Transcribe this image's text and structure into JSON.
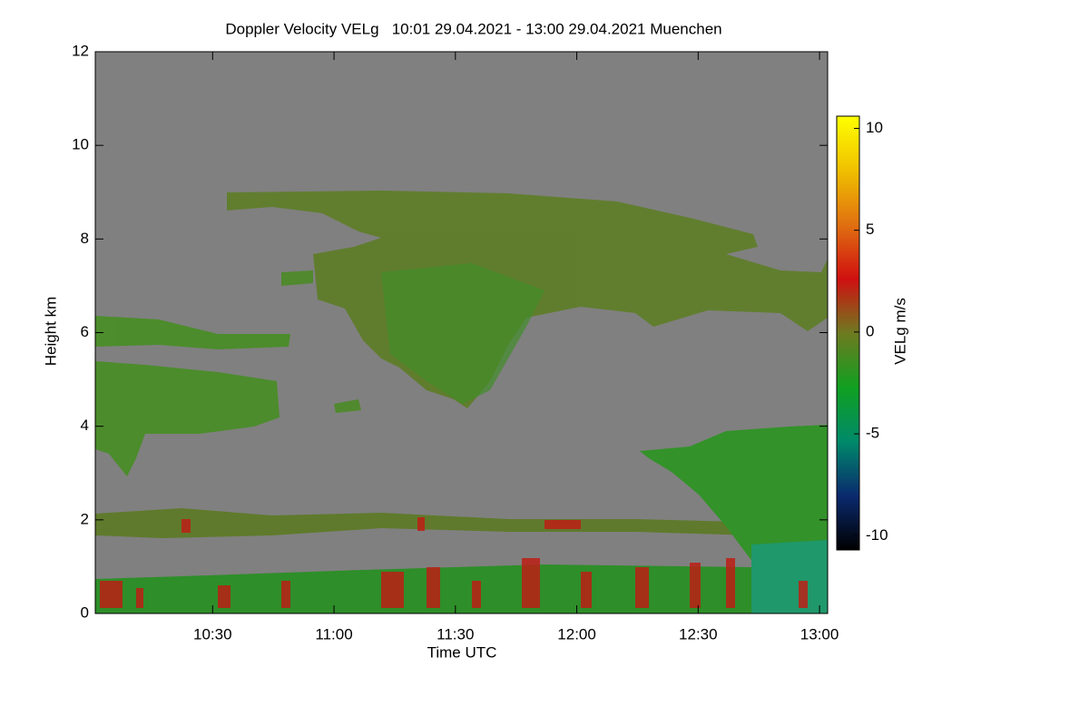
{
  "chart_data": {
    "type": "heatmap",
    "title": "Doppler Velocity VELg   10:01 29.04.2021 - 13:00 29.04.2021 Muenchen",
    "x_label": "Time UTC",
    "y_label": "Height km",
    "xlim": [
      601,
      782
    ],
    "xticks": [
      {
        "value": 630,
        "label": "10:30"
      },
      {
        "value": 660,
        "label": "11:00"
      },
      {
        "value": 690,
        "label": "11:30"
      },
      {
        "value": 720,
        "label": "12:00"
      },
      {
        "value": 750,
        "label": "12:30"
      },
      {
        "value": 780,
        "label": "13:00"
      }
    ],
    "ylim": [
      0,
      12
    ],
    "yticks": [
      0,
      2,
      4,
      6,
      8,
      10,
      12
    ],
    "colorbar": {
      "label": "VELg m/s",
      "lim": [
        -10.7,
        10.6
      ],
      "ticks": [
        -10,
        -5,
        0,
        5,
        10
      ],
      "colors": [
        "#000000",
        "#0a2a6e",
        "#008a6a",
        "#10a020",
        "#6e7a20",
        "#d01010",
        "#e07010",
        "#f0c000",
        "#ffff00"
      ]
    },
    "background": "#808080"
  }
}
